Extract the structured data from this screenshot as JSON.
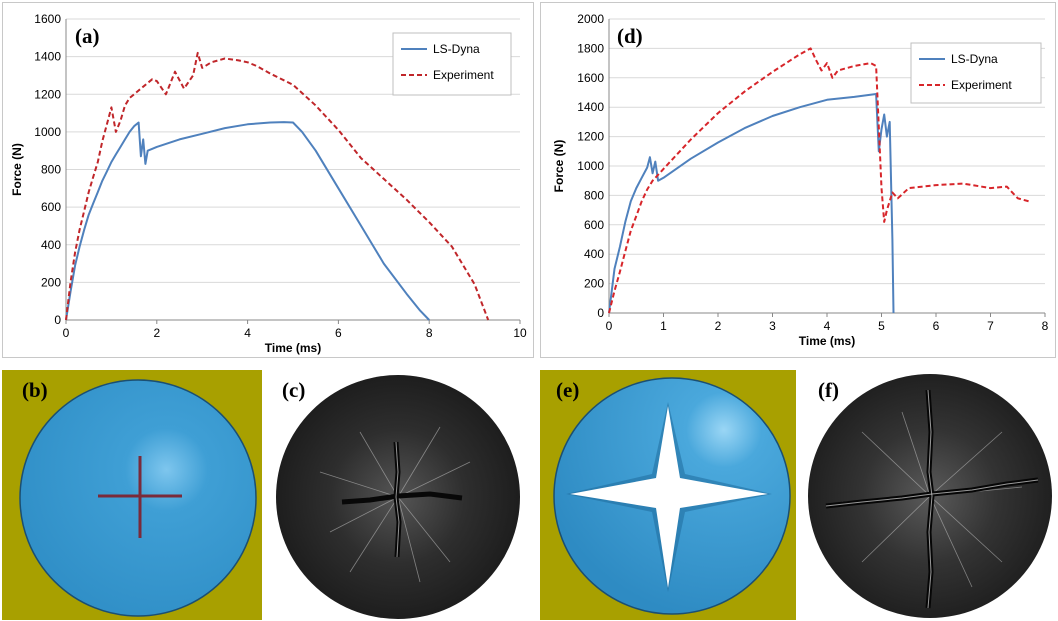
{
  "chart_data": [
    {
      "type": "line",
      "panel_label": "(a)",
      "xlabel": "Time (ms)",
      "ylabel": "Force (N)",
      "xlim": [
        0,
        10
      ],
      "ylim": [
        0,
        1600
      ],
      "xticks": [
        0,
        2,
        4,
        6,
        8,
        10
      ],
      "yticks": [
        0,
        200,
        400,
        600,
        800,
        1000,
        1200,
        1400,
        1600
      ],
      "grid": "horizontal",
      "legend_position": "top-right",
      "series": [
        {
          "name": "LS-Dyna",
          "color": "#4f81bd",
          "style": "solid",
          "x": [
            0,
            0.1,
            0.2,
            0.3,
            0.4,
            0.5,
            0.6,
            0.7,
            0.8,
            0.9,
            1.0,
            1.1,
            1.2,
            1.3,
            1.4,
            1.5,
            1.6,
            1.65,
            1.7,
            1.75,
            1.8,
            1.9,
            2.0,
            2.5,
            3.0,
            3.5,
            4.0,
            4.5,
            4.8,
            5.0,
            5.2,
            5.5,
            6.0,
            6.5,
            7.0,
            7.5,
            7.8,
            8.0
          ],
          "y": [
            0,
            150,
            290,
            390,
            480,
            560,
            620,
            680,
            740,
            790,
            840,
            880,
            920,
            960,
            1000,
            1030,
            1050,
            870,
            960,
            830,
            900,
            910,
            920,
            960,
            990,
            1020,
            1040,
            1050,
            1052,
            1050,
            1000,
            900,
            700,
            500,
            300,
            140,
            50,
            0
          ]
        },
        {
          "name": "Experiment",
          "color": "#c0262a",
          "style": "dashed",
          "x": [
            0,
            0.1,
            0.2,
            0.3,
            0.4,
            0.5,
            0.6,
            0.7,
            0.8,
            0.9,
            1.0,
            1.1,
            1.2,
            1.3,
            1.4,
            1.5,
            1.6,
            1.7,
            1.8,
            1.9,
            2.0,
            2.2,
            2.4,
            2.6,
            2.8,
            2.9,
            3.0,
            3.2,
            3.5,
            3.8,
            4.0,
            4.2,
            4.5,
            5.0,
            5.5,
            6.0,
            6.5,
            7.0,
            7.5,
            8.0,
            8.5,
            9.0,
            9.3
          ],
          "y": [
            0,
            200,
            360,
            480,
            580,
            680,
            760,
            840,
            950,
            1040,
            1130,
            1000,
            1060,
            1140,
            1180,
            1200,
            1220,
            1240,
            1260,
            1280,
            1270,
            1200,
            1320,
            1230,
            1300,
            1420,
            1340,
            1370,
            1390,
            1380,
            1370,
            1350,
            1310,
            1250,
            1140,
            1010,
            860,
            750,
            640,
            520,
            390,
            190,
            0
          ]
        }
      ]
    },
    {
      "type": "line",
      "panel_label": "(d)",
      "xlabel": "Time (ms)",
      "ylabel": "Force (N)",
      "xlim": [
        0,
        8
      ],
      "ylim": [
        0,
        2000
      ],
      "xticks": [
        0,
        1,
        2,
        3,
        4,
        5,
        6,
        7,
        8
      ],
      "yticks": [
        0,
        200,
        400,
        600,
        800,
        1000,
        1200,
        1400,
        1600,
        1800,
        2000
      ],
      "grid": "horizontal",
      "legend_position": "top-right",
      "series": [
        {
          "name": "LS-Dyna",
          "color": "#4f81bd",
          "style": "solid",
          "x": [
            0,
            0.1,
            0.2,
            0.3,
            0.4,
            0.5,
            0.6,
            0.7,
            0.75,
            0.8,
            0.85,
            0.9,
            1.0,
            1.5,
            2.0,
            2.5,
            3.0,
            3.5,
            4.0,
            4.5,
            4.9,
            4.95,
            5.0,
            5.05,
            5.1,
            5.15,
            5.2,
            5.22
          ],
          "y": [
            0,
            300,
            450,
            620,
            760,
            850,
            920,
            990,
            1060,
            950,
            1030,
            900,
            920,
            1050,
            1160,
            1260,
            1340,
            1400,
            1450,
            1470,
            1490,
            1100,
            1250,
            1350,
            1200,
            1300,
            500,
            0
          ]
        },
        {
          "name": "Experiment",
          "color": "#d7252a",
          "style": "dashed",
          "x": [
            0,
            0.1,
            0.2,
            0.3,
            0.4,
            0.5,
            0.6,
            0.7,
            0.8,
            0.9,
            1.0,
            1.5,
            2.0,
            2.5,
            3.0,
            3.5,
            3.7,
            3.8,
            3.9,
            4.0,
            4.1,
            4.2,
            4.5,
            4.8,
            4.9,
            5.0,
            5.05,
            5.1,
            5.2,
            5.3,
            5.5,
            6.0,
            6.5,
            7.0,
            7.3,
            7.5,
            7.7
          ],
          "y": [
            0,
            150,
            280,
            420,
            560,
            660,
            760,
            840,
            900,
            940,
            980,
            1180,
            1360,
            1510,
            1640,
            1760,
            1800,
            1720,
            1650,
            1700,
            1600,
            1650,
            1680,
            1700,
            1680,
            850,
            620,
            700,
            820,
            780,
            850,
            870,
            880,
            850,
            860,
            780,
            760
          ]
        }
      ]
    }
  ],
  "panel_labels": {
    "b": "(b)",
    "c": "(c)",
    "e": "(e)",
    "f": "(f)"
  },
  "colors": {
    "olive_background": "#a8a000",
    "sim_blue": "#3c9cd2",
    "dark_blue": "#1f6c9c",
    "crack_red": "#8a2a3a",
    "photo_dark": "#1a1a1a"
  }
}
